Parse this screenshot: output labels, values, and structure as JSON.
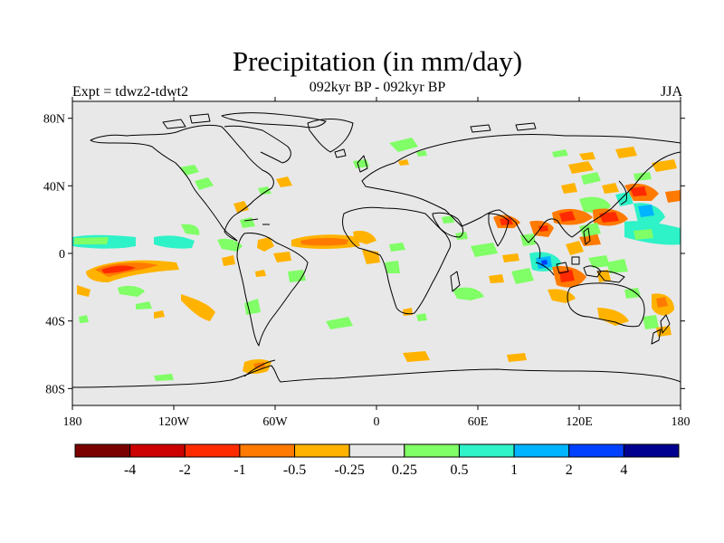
{
  "title": "Precipitation (in mm/day)",
  "subtitle": "092kyr BP - 092kyr BP",
  "left_string": "Expt = tdwz2-tdwt2",
  "right_string": "JJA",
  "chart_data": {
    "type": "heatmap",
    "x_ticks": [
      "180",
      "120W",
      "60W",
      "0",
      "60E",
      "120E",
      "180"
    ],
    "y_ticks": [
      "80N",
      "40N",
      "0",
      "40S",
      "80S"
    ],
    "xlim": [
      -180,
      180
    ],
    "ylim": [
      -90,
      90
    ],
    "colorbar": {
      "labels": [
        "-4",
        "-2",
        "-1",
        "-0.5",
        "-0.25",
        "0.25",
        "0.5",
        "1",
        "2",
        "4"
      ],
      "colors": [
        "#7a0000",
        "#cc0000",
        "#ff2a00",
        "#ff7a00",
        "#ffb300",
        "#e8e8e8",
        "#80ff66",
        "#2ef2c8",
        "#00b4ff",
        "#0040ff",
        "#000090"
      ]
    },
    "background_color": "#e8e8e8"
  }
}
